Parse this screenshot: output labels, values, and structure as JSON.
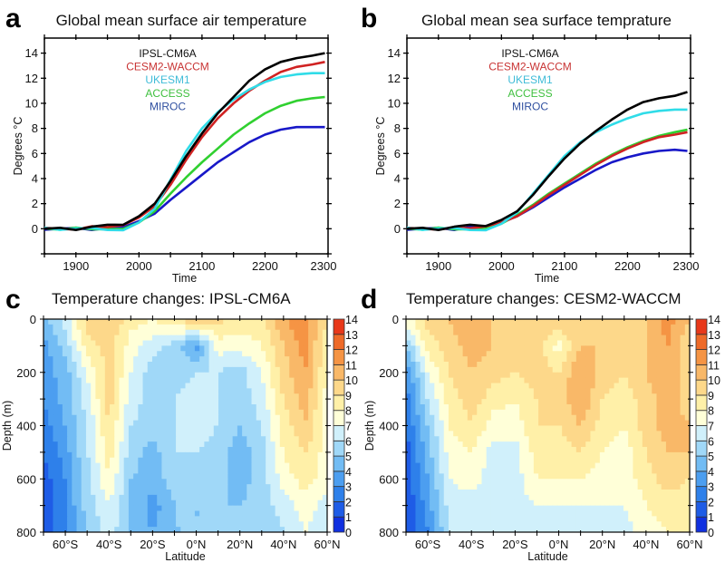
{
  "panels": {
    "a": {
      "letter": "a",
      "title": "Global mean surface air temperature"
    },
    "b": {
      "letter": "b",
      "title": "Global mean sea surface temprature"
    },
    "c": {
      "letter": "c",
      "title": "Temperature changes: IPSL-CM6A"
    },
    "d": {
      "letter": "d",
      "title": "Temperature changes: CESM2-WACCM"
    }
  },
  "chart_data": [
    {
      "type": "line",
      "title": "Global mean surface air temperature",
      "xlabel": "Time",
      "ylabel": "Degrees °C",
      "xlim": [
        1850,
        2300
      ],
      "ylim": [
        -2,
        15.2
      ],
      "xticks": [
        1900,
        2000,
        2100,
        2200,
        2300
      ],
      "yticks": [
        0,
        2,
        4,
        6,
        8,
        10,
        12,
        14
      ],
      "legend_placement": "top-center",
      "x": [
        1850,
        1875,
        1900,
        1925,
        1950,
        1975,
        2000,
        2025,
        2050,
        2075,
        2100,
        2125,
        2150,
        2175,
        2200,
        2225,
        2250,
        2275,
        2295
      ],
      "series": [
        {
          "name": "IPSL-CM6A",
          "color": "#000000",
          "label_color": "#111111",
          "values": [
            0,
            0,
            0,
            0.1,
            0.3,
            0.4,
            1.0,
            2.0,
            3.8,
            5.8,
            7.6,
            9.2,
            10.5,
            11.8,
            12.7,
            13.3,
            13.6,
            13.8,
            14.0
          ]
        },
        {
          "name": "CESM2-WACCM",
          "color": "#d02222",
          "label_color": "#c83434",
          "values": [
            0,
            0,
            0,
            0.1,
            0.2,
            0.3,
            0.9,
            1.8,
            3.5,
            5.5,
            7.3,
            8.8,
            10.0,
            11.0,
            11.8,
            12.5,
            12.9,
            13.1,
            13.3
          ]
        },
        {
          "name": "UKESM1",
          "color": "#30dce8",
          "label_color": "#40bcd8",
          "values": [
            0,
            0,
            0,
            0,
            0,
            -0.2,
            0.5,
            1.6,
            3.9,
            6.2,
            8.0,
            9.3,
            10.3,
            11.1,
            11.7,
            12.1,
            12.3,
            12.4,
            12.4
          ]
        },
        {
          "name": "ACCESS",
          "color": "#30d030",
          "label_color": "#40c040",
          "values": [
            0,
            0,
            0,
            0,
            0,
            -0.1,
            0.5,
            1.4,
            2.8,
            4.1,
            5.3,
            6.4,
            7.5,
            8.4,
            9.2,
            9.8,
            10.2,
            10.4,
            10.5
          ]
        },
        {
          "name": "MIROC",
          "color": "#1818c8",
          "label_color": "#3050a0",
          "values": [
            0,
            0,
            0,
            0,
            0,
            0.1,
            0.6,
            1.2,
            2.3,
            3.3,
            4.3,
            5.3,
            6.1,
            6.9,
            7.5,
            7.9,
            8.1,
            8.1,
            8.1
          ]
        }
      ]
    },
    {
      "type": "line",
      "title": "Global mean sea surface temprature",
      "xlabel": "Time",
      "ylabel": "Degrees °C",
      "xlim": [
        1850,
        2300
      ],
      "ylim": [
        -2,
        15.2
      ],
      "xticks": [
        1900,
        2000,
        2100,
        2200,
        2300
      ],
      "yticks": [
        0,
        2,
        4,
        6,
        8,
        10,
        12,
        14
      ],
      "legend_placement": "top-center",
      "x": [
        1850,
        1875,
        1900,
        1925,
        1950,
        1975,
        2000,
        2025,
        2050,
        2075,
        2100,
        2125,
        2150,
        2175,
        2200,
        2225,
        2250,
        2275,
        2295
      ],
      "series": [
        {
          "name": "IPSL-CM6A",
          "color": "#000000",
          "label_color": "#111111",
          "values": [
            0,
            0,
            0,
            0.1,
            0.3,
            0.3,
            0.7,
            1.4,
            2.7,
            4.2,
            5.6,
            6.8,
            7.8,
            8.7,
            9.5,
            10.1,
            10.4,
            10.6,
            10.9
          ]
        },
        {
          "name": "CESM2-WACCM",
          "color": "#d02222",
          "label_color": "#c83434",
          "values": [
            0,
            0,
            0,
            0,
            0.1,
            0.2,
            0.5,
            1.0,
            1.8,
            2.7,
            3.5,
            4.3,
            5.1,
            5.8,
            6.4,
            6.9,
            7.3,
            7.5,
            7.7
          ]
        },
        {
          "name": "UKESM1",
          "color": "#30dce8",
          "label_color": "#40bcd8",
          "values": [
            0,
            0,
            0,
            0,
            0,
            -0.2,
            0.4,
            1.3,
            2.8,
            4.3,
            5.8,
            6.9,
            7.7,
            8.3,
            8.8,
            9.2,
            9.4,
            9.5,
            9.5
          ]
        },
        {
          "name": "ACCESS",
          "color": "#30d030",
          "label_color": "#40c040",
          "values": [
            0,
            0,
            0,
            0,
            0,
            -0.1,
            0.4,
            1.1,
            1.9,
            2.8,
            3.6,
            4.4,
            5.2,
            5.9,
            6.5,
            7.0,
            7.4,
            7.7,
            7.9
          ]
        },
        {
          "name": "MIROC",
          "color": "#1818c8",
          "label_color": "#3050a0",
          "values": [
            0,
            0,
            0,
            0,
            0.1,
            0.2,
            0.5,
            1.0,
            1.7,
            2.5,
            3.3,
            4.0,
            4.7,
            5.3,
            5.7,
            6.0,
            6.2,
            6.3,
            6.2
          ]
        }
      ]
    },
    {
      "type": "heatmap",
      "title": "Temperature changes: IPSL-CM6A",
      "xlabel": "Latitude",
      "ylabel": "Depth (m)",
      "xlim": [
        -70,
        60
      ],
      "ylim": [
        800,
        0
      ],
      "xtick_labels": [
        "60°S",
        "40°S",
        "20°S",
        "0°N",
        "20°N",
        "40°N",
        "60°N"
      ],
      "xtick_values": [
        -60,
        -40,
        -20,
        0,
        20,
        40,
        60
      ],
      "ytick_labels": [
        "0",
        "200",
        "400",
        "600",
        "800"
      ],
      "lat": [
        -70,
        -60,
        -50,
        -40,
        -30,
        -20,
        -10,
        0,
        10,
        20,
        30,
        40,
        50,
        60
      ],
      "depth": [
        0,
        100,
        200,
        300,
        400,
        500,
        600,
        700,
        800
      ],
      "values": [
        [
          4.5,
          6.5,
          9.5,
          10,
          8.5,
          8,
          9,
          10,
          9.5,
          8.5,
          8.5,
          11,
          11.5,
          9
        ],
        [
          3.5,
          5.5,
          8.5,
          9.5,
          7.5,
          6.5,
          5.5,
          3.5,
          7.5,
          7.5,
          8,
          10,
          11.5,
          8
        ],
        [
          3.5,
          4.5,
          7,
          9.5,
          7,
          5.5,
          5.5,
          6,
          6,
          5.5,
          7,
          9.5,
          11,
          8
        ],
        [
          3,
          4.5,
          6.5,
          9.5,
          6.5,
          5.5,
          6,
          6.5,
          6,
          5.5,
          6.5,
          9,
          10.5,
          7.5
        ],
        [
          2.5,
          4,
          6,
          9,
          6,
          5.5,
          6,
          6.5,
          6,
          5,
          6,
          8.5,
          10,
          7.5
        ],
        [
          2,
          3.5,
          6,
          8.5,
          5.5,
          4.5,
          6,
          6,
          5.5,
          4.5,
          5.5,
          8,
          9,
          7.5
        ],
        [
          1.5,
          3,
          5.5,
          8,
          5,
          4.5,
          5.5,
          5.5,
          5.5,
          4.5,
          5.5,
          7.5,
          8.5,
          7.5
        ],
        [
          1.5,
          3,
          5.5,
          7,
          5,
          3.5,
          5,
          5,
          5,
          5,
          5.5,
          6.5,
          7.5,
          6.5
        ],
        [
          1.5,
          2.5,
          5,
          6.5,
          5,
          4,
          5,
          5,
          5,
          5,
          5,
          6,
          7,
          6.5
        ]
      ]
    },
    {
      "type": "heatmap",
      "title": "Temperature changes: CESM2-WACCM",
      "xlabel": "Latitude",
      "ylabel": "Depth (m)",
      "xlim": [
        -70,
        60
      ],
      "ylim": [
        800,
        0
      ],
      "xtick_labels": [
        "60°S",
        "40°S",
        "20°S",
        "0°N",
        "20°N",
        "40°N",
        "60°N"
      ],
      "xtick_values": [
        -60,
        -40,
        -20,
        0,
        20,
        40,
        60
      ],
      "ytick_labels": [
        "0",
        "200",
        "400",
        "600",
        "800"
      ],
      "lat": [
        -70,
        -60,
        -50,
        -40,
        -30,
        -20,
        -10,
        0,
        10,
        20,
        30,
        40,
        50,
        60
      ],
      "depth": [
        0,
        100,
        200,
        300,
        400,
        500,
        600,
        700,
        800
      ],
      "values": [
        [
          7.5,
          9.5,
          10,
          11,
          10,
          9.5,
          9.5,
          10,
          9.5,
          9.5,
          9.5,
          10,
          11.5,
          10
        ],
        [
          5,
          8.5,
          9.5,
          10.5,
          10,
          9.5,
          9.5,
          7.5,
          10,
          10,
          9.5,
          10,
          11,
          9
        ],
        [
          3,
          7,
          9,
          10,
          9.5,
          9,
          9.5,
          9,
          11,
          9.5,
          9,
          10,
          11,
          9.5
        ],
        [
          2.5,
          6,
          8.5,
          9.5,
          8.5,
          8,
          9,
          9.5,
          11,
          9,
          8.5,
          9.5,
          10.5,
          9.5
        ],
        [
          2,
          5,
          8,
          9,
          7.5,
          7.5,
          9,
          9,
          10,
          8.5,
          8,
          9.5,
          10.5,
          10
        ],
        [
          1.5,
          4.5,
          7.5,
          8,
          6.5,
          6.5,
          8.5,
          8.5,
          9,
          8,
          7.5,
          9,
          10,
          10
        ],
        [
          1.5,
          4,
          7,
          7.5,
          6.5,
          6.5,
          8,
          8,
          8,
          7.5,
          7.5,
          8.5,
          9.5,
          9
        ],
        [
          1,
          3.5,
          6.5,
          6.5,
          6,
          6.5,
          7,
          7,
          7,
          7,
          7,
          8,
          8.5,
          8.5
        ],
        [
          1,
          3,
          6,
          6,
          6,
          6.5,
          6.5,
          6.5,
          6.5,
          6.5,
          6.5,
          7.5,
          8,
          8
        ]
      ]
    }
  ],
  "colorbar": {
    "labels": [
      "0",
      "1",
      "2",
      "3",
      "4",
      "5",
      "6",
      "7",
      "8",
      "9",
      "10",
      "11",
      "12",
      "13",
      "14"
    ],
    "colors": [
      "#1030e0",
      "#1e5ce6",
      "#2e80ea",
      "#4c9ef0",
      "#72bcf4",
      "#a0d8f8",
      "#d0f0fb",
      "#ffffd8",
      "#fff0a8",
      "#fdd88a",
      "#f9b868",
      "#f59444",
      "#ee6a28",
      "#e8381a"
    ]
  }
}
